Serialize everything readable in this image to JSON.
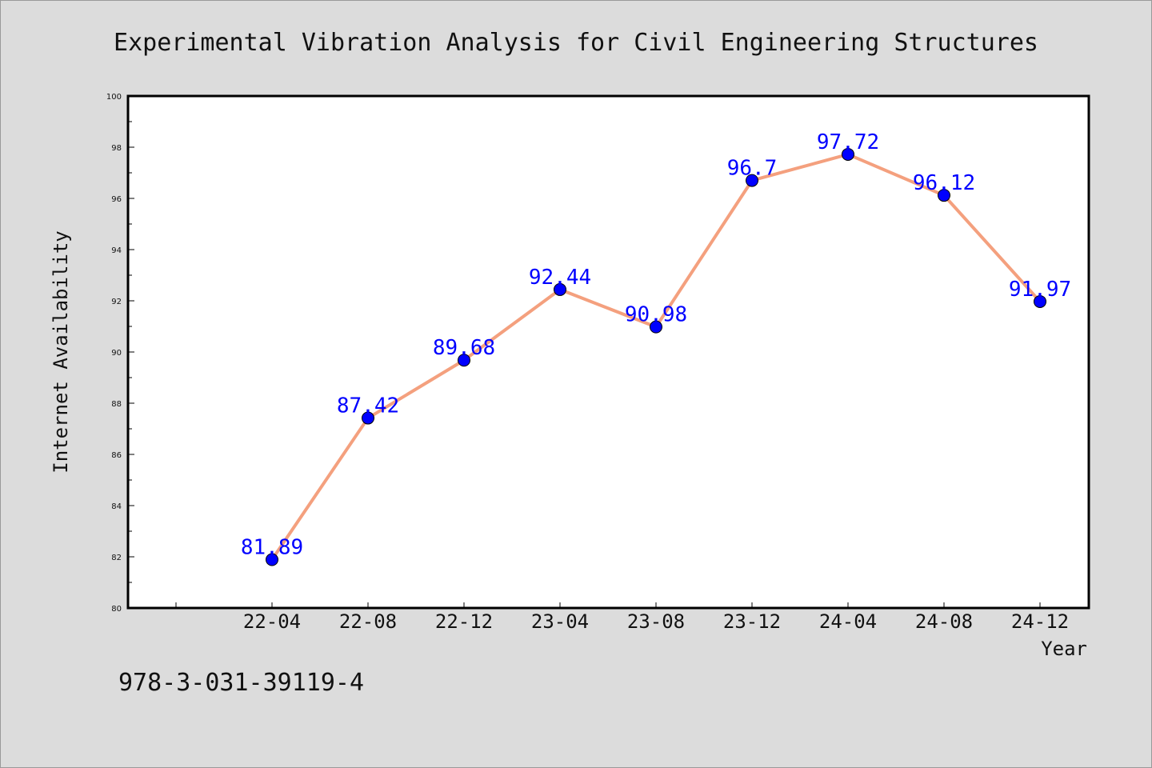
{
  "footnote": "978-3-031-39119-4",
  "chart_data": {
    "type": "line",
    "title": "Experimental Vibration Analysis for Civil Engineering Structures",
    "xlabel": "Year",
    "ylabel": "Internet Availability",
    "categories": [
      "22-04",
      "22-08",
      "22-12",
      "23-04",
      "23-08",
      "23-12",
      "24-04",
      "24-08",
      "24-12"
    ],
    "series": [
      {
        "values": [
          81.89,
          87.42,
          89.68,
          92.44,
          90.98,
          96.7,
          97.72,
          96.12,
          91.97
        ],
        "data_labels": [
          "81.89",
          "87.42",
          "89.68",
          "92.44",
          "90.98",
          "96.7",
          "97.72",
          "96.12",
          "91.97"
        ],
        "line_color": "#f4a07e",
        "marker_color": "#0000ff"
      }
    ],
    "ylim": [
      80,
      100
    ],
    "yticks": [
      80,
      82,
      84,
      86,
      88,
      90,
      92,
      94,
      96,
      98,
      100
    ],
    "grid": false,
    "legend": "none",
    "label_color": "#0000ff",
    "background": "#ffffff",
    "figure_background": "#dcdcdc"
  }
}
